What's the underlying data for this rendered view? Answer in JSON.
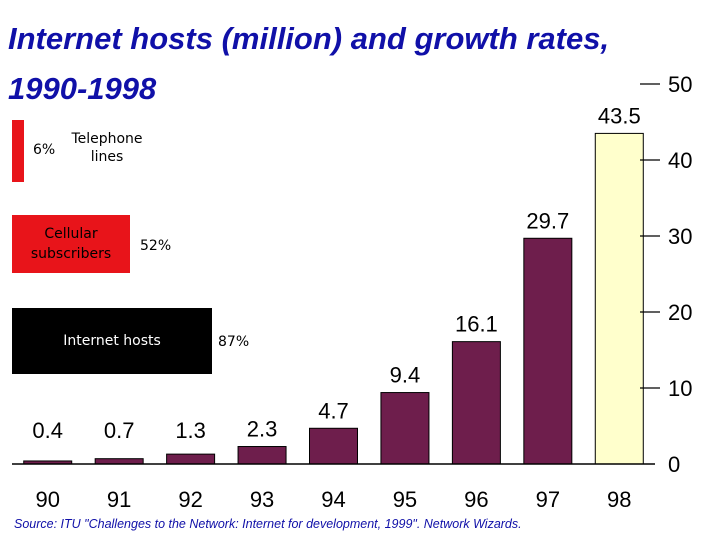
{
  "title": "Internet hosts (million) and growth rates, 1990-1998",
  "source": "Source:  ITU \"Challenges to the Network: Internet for development, 1999\".  Network Wizards.",
  "colors": {
    "bar": "#6e1e4c",
    "bar_highlight": "#ffffcc",
    "title": "#1010a8"
  },
  "growth_legend": [
    {
      "label": "Telephone lines",
      "percent": "6%",
      "color": "#e8141a"
    },
    {
      "label": "Cellular subscribers",
      "percent": "52%",
      "color": "#e8141a"
    },
    {
      "label": "Internet hosts",
      "percent": "87%",
      "color": "#000000"
    }
  ],
  "chart_data": {
    "type": "bar",
    "title": "Internet hosts (million) and growth rates, 1990-1998",
    "categories": [
      "90",
      "91",
      "92",
      "93",
      "94",
      "95",
      "96",
      "97",
      "98"
    ],
    "values": [
      0.4,
      0.7,
      1.3,
      2.3,
      4.7,
      9.4,
      16.1,
      29.7,
      43.5
    ],
    "data_labels": [
      "0.4",
      "0.7",
      "1.3",
      "2.3",
      "4.7",
      "9.4",
      "16.1",
      "29.7",
      "43.5"
    ],
    "ylim": [
      0,
      50
    ],
    "yticks": [
      0,
      10,
      20,
      30,
      40,
      50
    ],
    "yaxis_side": "right",
    "grid": false
  }
}
